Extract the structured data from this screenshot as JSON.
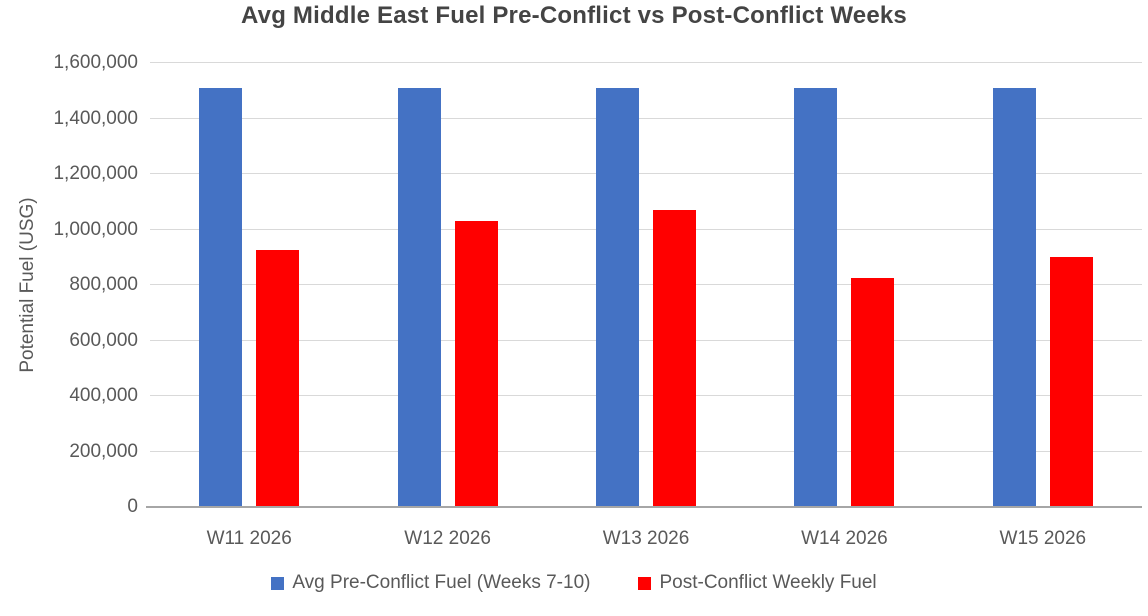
{
  "chart_data": {
    "type": "bar",
    "title": "Avg Middle East Fuel Pre-Conflict vs Post-Conflict Weeks",
    "ylabel": "Potential Fuel (USG)",
    "xlabel": "",
    "ylim": [
      0,
      1600000
    ],
    "grid": true,
    "legend_position": "bottom",
    "yticks": [
      {
        "value": 0,
        "label": "0"
      },
      {
        "value": 200000,
        "label": "200,000"
      },
      {
        "value": 400000,
        "label": "400,000"
      },
      {
        "value": 600000,
        "label": "600,000"
      },
      {
        "value": 800000,
        "label": "800,000"
      },
      {
        "value": 1000000,
        "label": "1,000,000"
      },
      {
        "value": 1200000,
        "label": "1,200,000"
      },
      {
        "value": 1400000,
        "label": "1,400,000"
      },
      {
        "value": 1600000,
        "label": "1,600,000"
      }
    ],
    "categories": [
      "W11 2026",
      "W12 2026",
      "W13 2026",
      "W14 2026",
      "W15 2026"
    ],
    "series": [
      {
        "name": "Avg Pre-Conflict Fuel (Weeks 7-10)",
        "color": "#4472C4",
        "values": [
          1510000,
          1510000,
          1510000,
          1510000,
          1510000
        ]
      },
      {
        "name": "Post-Conflict Weekly Fuel",
        "color": "#FF0000",
        "values": [
          925000,
          1030000,
          1070000,
          825000,
          900000
        ]
      }
    ],
    "colors": {
      "title_text": "#444444",
      "axis_text": "#595959",
      "gridline": "#D9D9D9",
      "axis_line": "#A6A6A6",
      "background": "#FFFFFF"
    }
  }
}
